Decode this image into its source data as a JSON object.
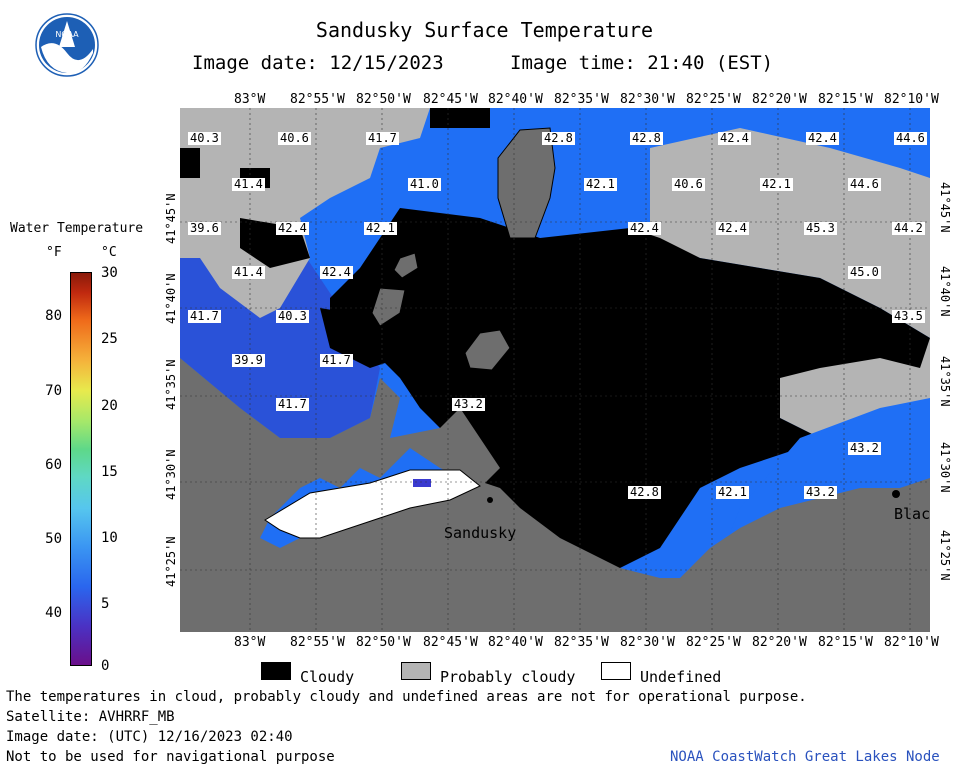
{
  "title": "Sandusky Surface Temperature",
  "image_date_label": "Image date: 12/15/2023",
  "image_time_label": "Image time: 21:40 (EST)",
  "logo_text": "NOAA",
  "longitude_labels": [
    "83°W",
    "82°55'W",
    "82°50'W",
    "82°45'W",
    "82°40'W",
    "82°35'W",
    "82°30'W",
    "82°25'W",
    "82°20'W",
    "82°15'W",
    "82°10'W"
  ],
  "latitude_labels": [
    "41°45'N",
    "41°40'N",
    "41°35'N",
    "41°30'N",
    "41°25'N"
  ],
  "colorbar": {
    "title": "Water Temperature",
    "unit_f": "°F",
    "unit_c": "°C",
    "f_ticks": [
      "80",
      "70",
      "60",
      "50",
      "40"
    ],
    "c_ticks": [
      "30",
      "25",
      "20",
      "15",
      "10",
      "5",
      "0"
    ]
  },
  "temperature_labels": [
    "40.3",
    "40.6",
    "41.7",
    "42.8",
    "42.8",
    "42.4",
    "42.4",
    "44.6",
    "41.4",
    "41.0",
    "42.1",
    "40.6",
    "42.1",
    "44.6",
    "39.6",
    "42.4",
    "42.1",
    "42.4",
    "42.4",
    "45.3",
    "44.2",
    "41.4",
    "42.4",
    "45.0",
    "41.7",
    "40.3",
    "43.5",
    "39.9",
    "41.7",
    "41.7",
    "43.2",
    "43.2",
    "42.8",
    "42.1",
    "43.2"
  ],
  "place_labels": {
    "sandusky": "Sandusky",
    "black": "Blac"
  },
  "legend": {
    "cloudy": "Cloudy",
    "probably_cloudy": "Probably cloudy",
    "undefined": "Undefined"
  },
  "footer": {
    "disclaimer": "The temperatures in cloud, probably cloudy and undefined areas are not for operational purpose.",
    "satellite": "Satellite: AVHRRF_MB",
    "utc_date": "Image date: (UTC) 12/16/2023  02:40",
    "nav_warning": "Not to be used for navigational purpose",
    "credit": "NOAA CoastWatch Great Lakes Node"
  },
  "colors": {
    "land": "#6e6e6e",
    "cloud": "#000000",
    "probably_cloudy": "#b4b4b4",
    "undefined": "#ffffff",
    "water_blue": "#1f6ff5",
    "water_dark": "#2a52d8"
  }
}
